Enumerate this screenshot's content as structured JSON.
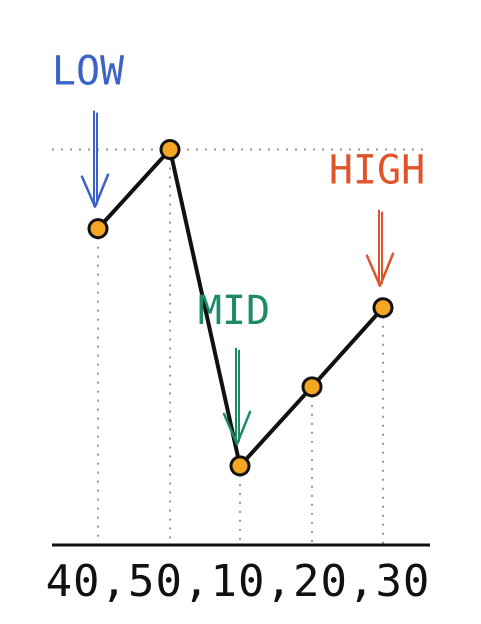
{
  "chart_data": {
    "type": "line",
    "title": "",
    "xlabel": "",
    "ylabel": "",
    "x_label_text": "40,50,10,20,30",
    "values": [
      40,
      50,
      10,
      20,
      30
    ],
    "ylim": [
      0,
      55
    ],
    "grid": false,
    "reference_line": {
      "y": 50,
      "style": "dotted"
    },
    "annotations": [
      {
        "text": "LOW",
        "point_index": 0,
        "color": "#3a62c9"
      },
      {
        "text": "MID",
        "point_index": 2,
        "color": "#1f8a6a"
      },
      {
        "text": "HIGH",
        "point_index": 4,
        "color": "#e0532b"
      }
    ],
    "line_color": "#111111",
    "marker_color": "#f5a623"
  }
}
